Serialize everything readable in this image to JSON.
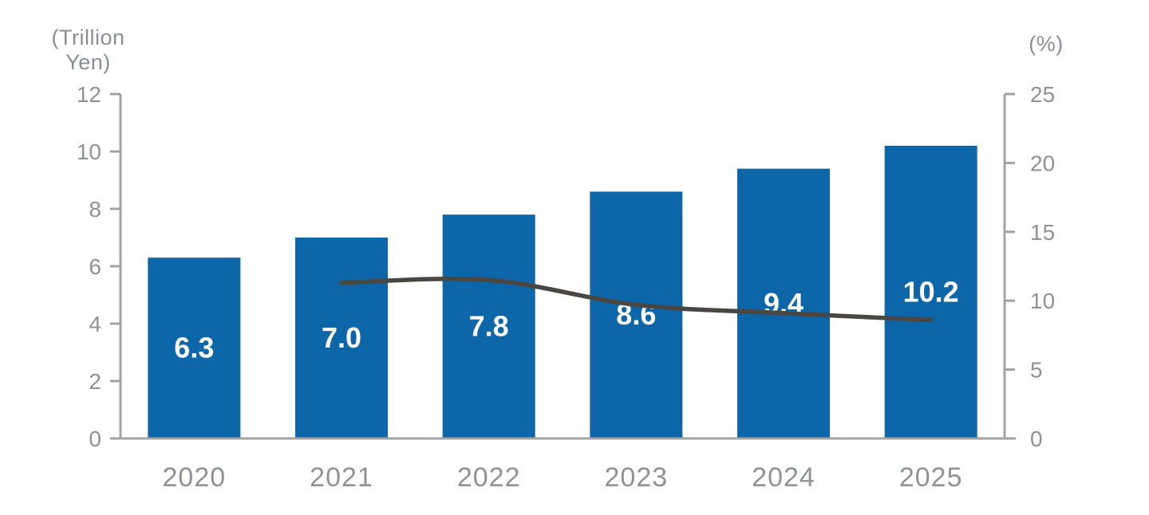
{
  "chart_data": {
    "type": "combo",
    "categories": [
      "2020",
      "2021",
      "2022",
      "2023",
      "2024",
      "2025"
    ],
    "series": [
      {
        "name": "market-size-bars",
        "type": "bar",
        "axis": "left",
        "values": [
          6.3,
          7.0,
          7.8,
          8.6,
          9.4,
          10.2
        ],
        "labels": [
          "6.3",
          "7.0",
          "7.8",
          "8.6",
          "9.4",
          "10.2"
        ]
      },
      {
        "name": "growth-rate-line",
        "type": "line",
        "axis": "right",
        "values": [
          null,
          11.3,
          11.5,
          9.7,
          9.1,
          8.6
        ]
      }
    ],
    "left_axis": {
      "unit_lines": [
        "(Trillion",
        "Yen)"
      ],
      "ticks": [
        0,
        2,
        4,
        6,
        8,
        10,
        12
      ],
      "range": [
        0,
        12
      ]
    },
    "right_axis": {
      "unit": "(%)",
      "ticks": [
        0,
        5,
        10,
        15,
        20,
        25
      ],
      "range": [
        0,
        25
      ]
    },
    "grid": false,
    "legend": "none",
    "title": ""
  },
  "style": {
    "bar_color": "#0c66a8",
    "bar_label_color": "#ffffff",
    "line_color": "#4a4642",
    "axis_color": "#a3a3a3",
    "tick_label_color": "#8f9396",
    "category_label_color": "#8f9396",
    "background": "#ffffff"
  }
}
